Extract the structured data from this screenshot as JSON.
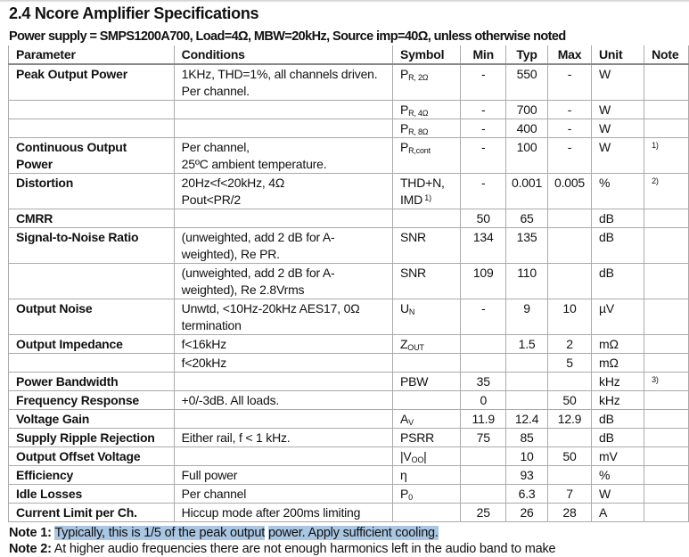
{
  "title": "2.4 Ncore Amplifier Specifications",
  "subtitle": "Power supply = SMPS1200A700, Load=4Ω, MBW=20kHz, Source imp=40Ω, unless otherwise noted",
  "headers": [
    "Parameter",
    "Conditions",
    "Symbol",
    "Min",
    "Typ",
    "Max",
    "Unit",
    "Note"
  ],
  "rows": [
    {
      "param": "Peak Output Power",
      "cond": "1KHz, THD=1%, all channels driven. Per channel.",
      "sym": "P",
      "symsub": "R, 2Ω",
      "min": "-",
      "typ": "550",
      "max": "-",
      "unit": "W",
      "note": ""
    },
    {
      "param": "",
      "cond": "",
      "sym": "P",
      "symsub": "R, 4Ω",
      "min": "-",
      "typ": "700",
      "max": "-",
      "unit": "W",
      "note": ""
    },
    {
      "param": "",
      "cond": "",
      "sym": "P",
      "symsub": "R, 8Ω",
      "min": "-",
      "typ": "400",
      "max": "-",
      "unit": "W",
      "note": ""
    },
    {
      "param": "Continuous Output Power",
      "cond": "Per channel,\n25ºC ambient temperature.",
      "sym": "P",
      "symsub": "R,cont",
      "min": "-",
      "typ": "100",
      "max": "-",
      "unit": "W",
      "note": "1)"
    },
    {
      "param": "Distortion",
      "cond": "20Hz<f<20kHz, 4Ω\nPout<PR/2",
      "sym": "THD+N, IMD",
      "symsup": "1)",
      "min": "-",
      "typ": "0.001",
      "max": "0.005",
      "unit": "%",
      "note": "2)"
    },
    {
      "param": "CMRR",
      "cond": "",
      "sym": "",
      "min": "50",
      "typ": "65",
      "max": "",
      "unit": "dB",
      "note": ""
    },
    {
      "param": "Signal-to-Noise Ratio",
      "cond": "(unweighted, add 2 dB for A-weighted), Re PR.",
      "sym": "SNR",
      "min": "134",
      "typ": "135",
      "max": "",
      "unit": "dB",
      "note": ""
    },
    {
      "param": "",
      "cond": "(unweighted, add 2 dB for A-weighted), Re 2.8Vrms",
      "sym": "SNR",
      "min": "109",
      "typ": "110",
      "max": "",
      "unit": "dB",
      "note": ""
    },
    {
      "param": "Output Noise",
      "cond": "Unwtd, <10Hz-20kHz AES17, 0Ω termination",
      "sym": "U",
      "symsub": "N",
      "min": "-",
      "typ": "9",
      "max": "10",
      "unit": "µV",
      "note": ""
    },
    {
      "param": "Output Impedance",
      "cond": "f<16kHz",
      "sym": "Z",
      "symsub": "OUT",
      "min": "",
      "typ": "1.5",
      "max": "2",
      "unit": "mΩ",
      "note": ""
    },
    {
      "param": "",
      "cond": "f<20kHz",
      "sym": "",
      "min": "",
      "typ": "",
      "max": "5",
      "unit": "mΩ",
      "note": ""
    },
    {
      "param": "Power Bandwidth",
      "cond": "",
      "sym": "PBW",
      "min": "35",
      "typ": "",
      "max": "",
      "unit": "kHz",
      "note": "3)"
    },
    {
      "param": "Frequency Response",
      "cond": "+0/-3dB. All loads.",
      "sym": "",
      "min": "0",
      "typ": "",
      "max": "50",
      "unit": "kHz",
      "note": ""
    },
    {
      "param": "Voltage Gain",
      "cond": "",
      "sym": "A",
      "symsub": "V",
      "min": "11.9",
      "typ": "12.4",
      "max": "12.9",
      "unit": "dB",
      "note": ""
    },
    {
      "param": "Supply Ripple Rejection",
      "cond": "Either rail, f < 1 kHz.",
      "sym": "PSRR",
      "min": "75",
      "typ": "85",
      "max": "",
      "unit": "dB",
      "note": ""
    },
    {
      "param": "Output Offset Voltage",
      "cond": "",
      "sym": "|V",
      "symsub": "OO",
      "symafter": "|",
      "min": "",
      "typ": "10",
      "max": "50",
      "unit": "mV",
      "note": ""
    },
    {
      "param": "Efficiency",
      "cond": "Full power",
      "sym": "η",
      "min": "",
      "typ": "93",
      "max": "",
      "unit": "%",
      "note": ""
    },
    {
      "param": "Idle Losses",
      "cond": "Per channel",
      "sym": "P",
      "symsub": "0",
      "min": "",
      "typ": "6.3",
      "max": "7",
      "unit": "W",
      "note": ""
    },
    {
      "param": "Current Limit per Ch.",
      "cond": "Hiccup mode after 200ms limiting",
      "sym": "",
      "min": "25",
      "typ": "26",
      "max": "28",
      "unit": "A",
      "note": ""
    }
  ],
  "notes": {
    "note1_label": "Note 1:",
    "note1_text_a": "Typically, this is 1/5 of the peak output",
    "note1_text_b": "power. Apply sufficient cooling.",
    "note2_label": "Note 2:",
    "note2_text": "At higher audio frequencies there are not enough harmonics left in the audio band to make"
  },
  "colors": {
    "highlight": "#a9c6e2",
    "grid": "#aaaaaa"
  }
}
